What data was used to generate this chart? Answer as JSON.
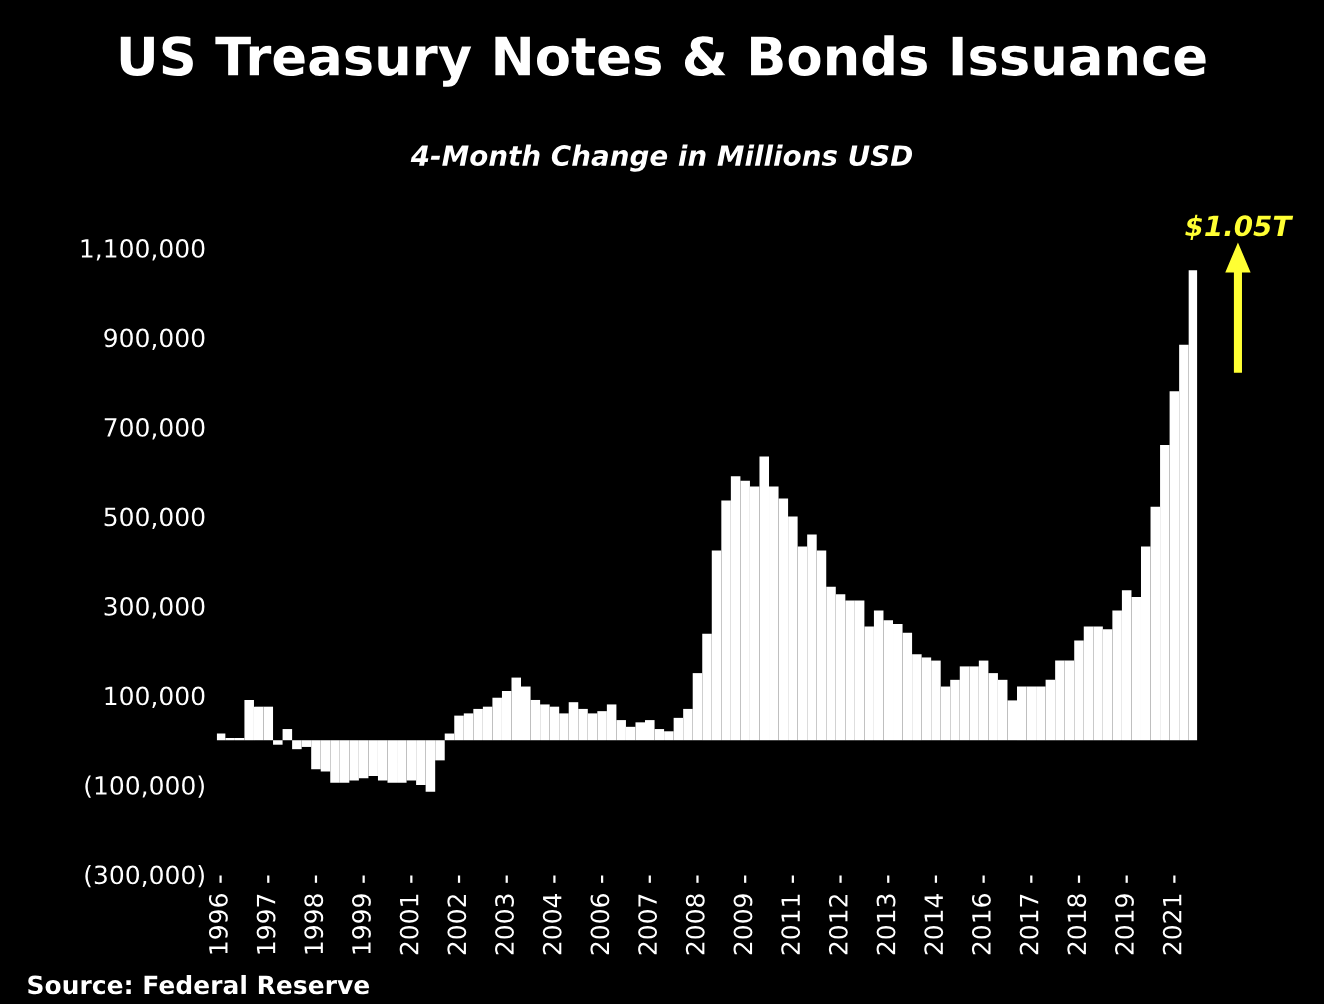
{
  "chart_data": {
    "type": "bar",
    "title": "US Treasury Notes & Bonds Issuance",
    "subtitle": "4-Month Change in Millions USD",
    "categories": [
      "1996",
      null,
      null,
      null,
      null,
      "1997",
      null,
      null,
      null,
      null,
      "1998",
      null,
      null,
      null,
      null,
      "1999",
      null,
      null,
      null,
      null,
      "2001",
      null,
      null,
      null,
      null,
      "2002",
      null,
      null,
      null,
      null,
      "2003",
      null,
      null,
      null,
      null,
      "2004",
      null,
      null,
      null,
      null,
      "2006",
      null,
      null,
      null,
      null,
      "2007",
      null,
      null,
      null,
      null,
      "2008",
      null,
      null,
      null,
      null,
      "2009",
      null,
      null,
      null,
      null,
      "2011",
      null,
      null,
      null,
      null,
      "2012",
      null,
      null,
      null,
      null,
      "2013",
      null,
      null,
      null,
      null,
      "2014",
      null,
      null,
      null,
      null,
      "2016",
      null,
      null,
      null,
      null,
      "2017",
      null,
      null,
      null,
      null,
      "2018",
      null,
      null,
      null,
      null,
      "2019",
      null,
      null,
      null,
      null,
      "2021",
      null,
      null
    ],
    "series": [
      {
        "color": "#ffffff",
        "values": [
          15000,
          5000,
          5000,
          90000,
          75000,
          75000,
          -10000,
          25000,
          -20000,
          -15000,
          -65000,
          -70000,
          -95000,
          -95000,
          -90000,
          -85000,
          -80000,
          -90000,
          -95000,
          -95000,
          -90000,
          -100000,
          -115000,
          -45000,
          15000,
          55000,
          60000,
          70000,
          75000,
          95000,
          110000,
          140000,
          120000,
          90000,
          80000,
          75000,
          60000,
          85000,
          70000,
          60000,
          65000,
          80000,
          45000,
          30000,
          40000,
          45000,
          25000,
          20000,
          50000,
          70000,
          150000,
          238000,
          424000,
          536000,
          590000,
          580000,
          567000,
          634000,
          567000,
          540000,
          500000,
          433000,
          460000,
          424000,
          343000,
          326000,
          312000,
          312000,
          254000,
          290000,
          268000,
          260000,
          240000,
          192000,
          185000,
          178000,
          120000,
          135000,
          165000,
          165000,
          178000,
          150000,
          135000,
          89000,
          120000,
          120000,
          120000,
          135000,
          178000,
          178000,
          223000,
          254000,
          254000,
          248000,
          290000,
          335000,
          320000,
          433000,
          522000,
          660000,
          780000,
          884000,
          1050000
        ]
      }
    ],
    "ylim": [
      -300000,
      1100000
    ],
    "yticks": [
      {
        "value": -300000,
        "label": "(300,000)"
      },
      {
        "value": -100000,
        "label": "(100,000)"
      },
      {
        "value": 100000,
        "label": "100,000"
      },
      {
        "value": 300000,
        "label": "300,000"
      },
      {
        "value": 500000,
        "label": "500,000"
      },
      {
        "value": 700000,
        "label": "700,000"
      },
      {
        "value": 900000,
        "label": "900,000"
      },
      {
        "value": 1100000,
        "label": "1,100,000"
      }
    ],
    "grid": false,
    "legend": false,
    "annotations": [
      "$1.05T",
      "Source: Federal Reserve"
    ]
  }
}
